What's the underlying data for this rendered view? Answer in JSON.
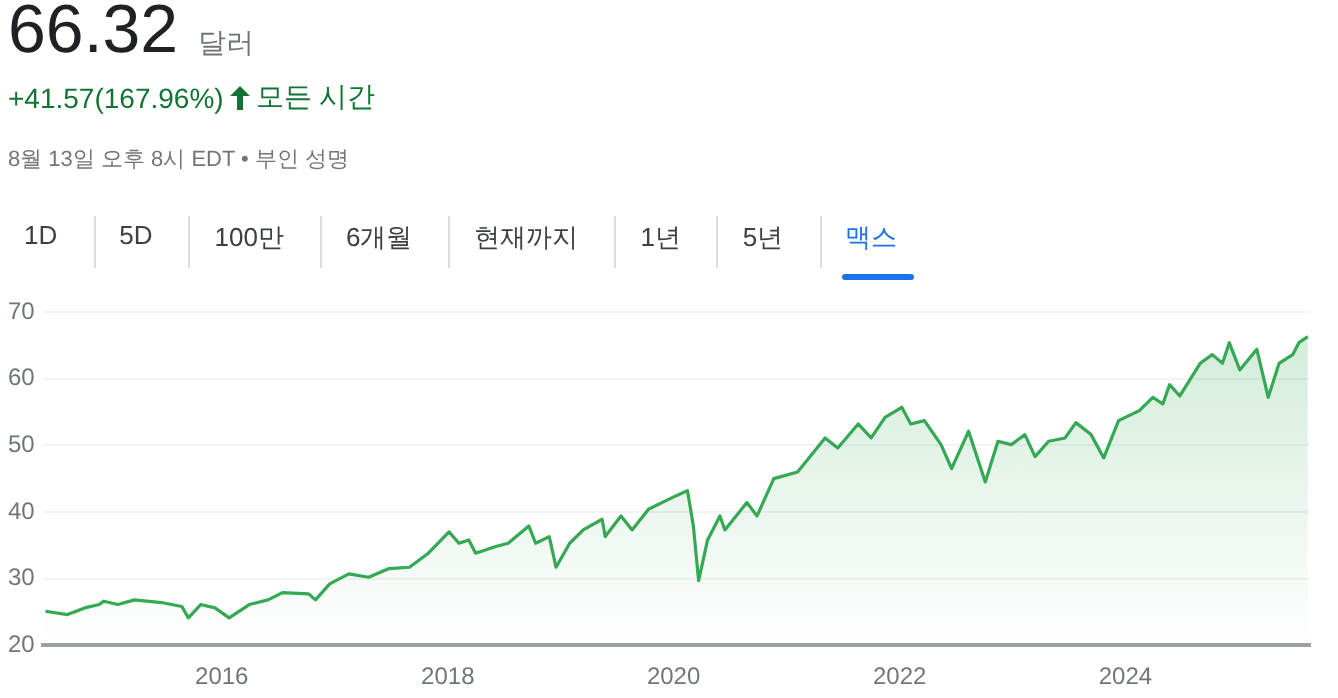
{
  "chart_data": {
    "type": "area",
    "title": "66.32",
    "annotations": [
      "달러",
      "+41.57(167.96%)",
      "모든 시간",
      "8월 13일 오후 8시 EDT • 부인 성명",
      "1D",
      "5D",
      "100만",
      "6개월",
      "현재까지",
      "1년",
      "5년",
      "맥스"
    ],
    "x": [
      "2014-06-10",
      "2014-08-20",
      "2014-10-15",
      "2014-12-01",
      "2014-12-15",
      "2015-01-30",
      "2015-03-25",
      "2015-06-20",
      "2015-08-25",
      "2015-09-15",
      "2015-10-25",
      "2015-12-10",
      "2016-01-25",
      "2016-03-30",
      "2016-05-30",
      "2016-07-15",
      "2016-10-08",
      "2016-10-30",
      "2016-12-15",
      "2017-02-15",
      "2017-04-20",
      "2017-06-25",
      "2017-08-30",
      "2017-10-30",
      "2018-01-05",
      "2018-02-06",
      "2018-03-10",
      "2018-04-01",
      "2018-06-05",
      "2018-07-15",
      "2018-09-20",
      "2018-10-12",
      "2018-11-25",
      "2018-12-17",
      "2019-01-30",
      "2019-03-15",
      "2019-05-15",
      "2019-05-25",
      "2019-07-15",
      "2019-08-20",
      "2019-10-12",
      "2020-01-08",
      "2020-02-15",
      "2020-03-05",
      "2020-03-22",
      "2020-04-20",
      "2020-05-30",
      "2020-06-15",
      "2020-08-25",
      "2020-09-27",
      "2020-11-20",
      "2021-02-05",
      "2021-05-05",
      "2021-06-15",
      "2021-08-20",
      "2021-10-01",
      "2021-11-15",
      "2022-01-08",
      "2022-02-06",
      "2022-03-22",
      "2022-05-15",
      "2022-06-18",
      "2022-08-12",
      "2022-10-05",
      "2022-11-15",
      "2022-12-28",
      "2023-02-10",
      "2023-03-15",
      "2023-04-28",
      "2023-06-20",
      "2023-07-25",
      "2023-09-12",
      "2023-10-23",
      "2023-12-10",
      "2024-02-15",
      "2024-03-30",
      "2024-05-01",
      "2024-05-23",
      "2024-06-25",
      "2024-08-30",
      "2024-10-08",
      "2024-11-10",
      "2024-12-02",
      "2025-01-05",
      "2025-03-01",
      "2025-04-07",
      "2025-05-12",
      "2025-06-25",
      "2025-07-15",
      "2025-08-13"
    ],
    "values": [
      25.1,
      24.6,
      25.6,
      26.1,
      26.6,
      26.1,
      26.8,
      26.4,
      25.8,
      24.1,
      26.1,
      25.6,
      24.1,
      26.1,
      26.8,
      27.9,
      27.7,
      26.8,
      29.2,
      30.7,
      30.2,
      31.5,
      31.7,
      33.8,
      37.0,
      35.3,
      35.8,
      33.8,
      34.8,
      35.3,
      37.9,
      35.3,
      36.3,
      31.7,
      35.3,
      37.3,
      38.9,
      36.3,
      39.4,
      37.3,
      40.4,
      42.4,
      43.2,
      37.9,
      29.7,
      35.8,
      39.4,
      37.3,
      41.4,
      39.4,
      45.0,
      46.0,
      51.1,
      49.6,
      53.2,
      51.1,
      54.2,
      55.7,
      53.2,
      53.7,
      50.1,
      46.5,
      52.1,
      44.5,
      50.6,
      50.1,
      51.6,
      48.3,
      50.6,
      51.1,
      53.4,
      51.6,
      48.1,
      53.7,
      55.2,
      57.2,
      56.2,
      59.1,
      57.4,
      62.3,
      63.6,
      62.3,
      65.4,
      61.3,
      64.4,
      57.2,
      62.3,
      63.6,
      65.4,
      66.3
    ],
    "color": "#34a853",
    "xlim": [
      "2014-06-01",
      "2025-08-20"
    ],
    "xticks": [
      "2016",
      "2018",
      "2020",
      "2022",
      "2024"
    ],
    "ylim": [
      20,
      70
    ],
    "yticks": [
      20,
      30,
      40,
      50,
      60,
      70
    ],
    "grid": "y",
    "legend": false,
    "marker": "none",
    "line_style": "solid"
  }
}
